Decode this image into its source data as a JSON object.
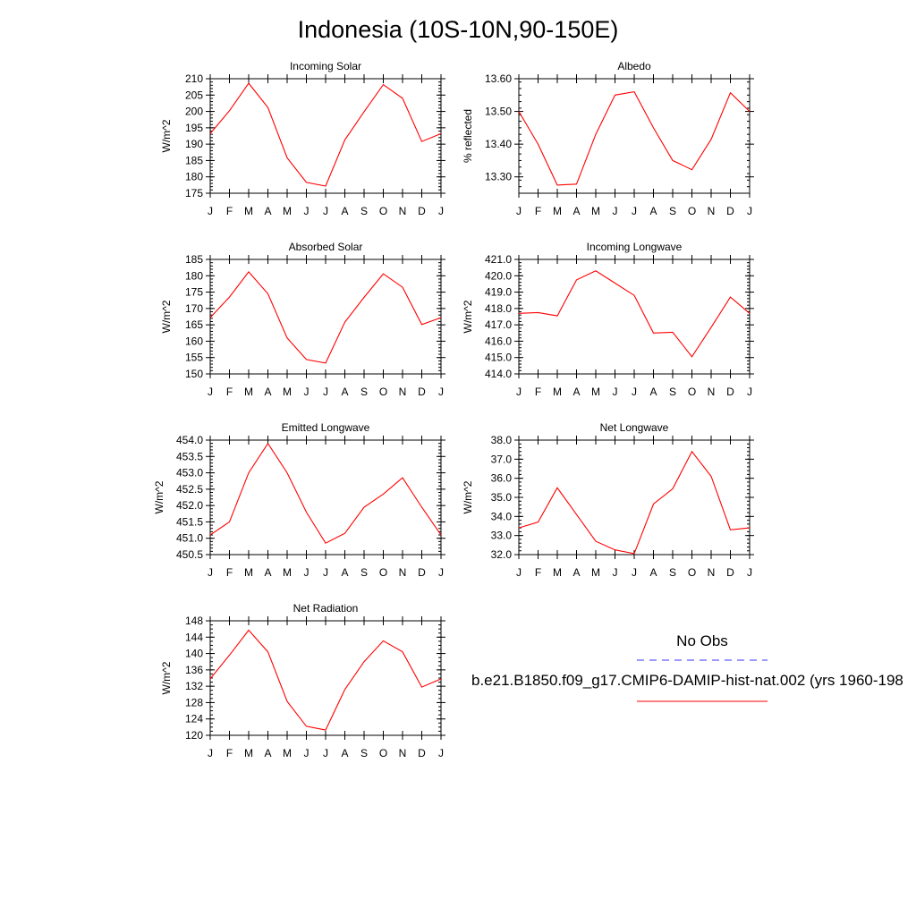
{
  "title": "Indonesia (10S-10N,90-150E)",
  "colors": {
    "model": "#ff0000",
    "obs": "#3333ff",
    "axes": "#000000"
  },
  "legend": {
    "obs_label": "No Obs",
    "model_label": "b.e21.B1850.f09_g17.CMIP6-DAMIP-hist-nat.002 (yrs 1960-198"
  },
  "chart_data": [
    {
      "type": "line",
      "title": "Incoming Solar",
      "xlabel": "",
      "ylabel": "W/m^2",
      "categories": [
        "J",
        "F",
        "M",
        "A",
        "M",
        "J",
        "J",
        "A",
        "S",
        "O",
        "N",
        "D",
        "J"
      ],
      "series": [
        {
          "values": [
            193.2,
            200.2,
            208.6,
            201.2,
            185.8,
            178.3,
            177.2,
            191.3,
            199.9,
            208.2,
            204.0,
            190.8,
            193.2
          ]
        }
      ],
      "ylim": [
        175,
        210
      ],
      "yticks": [
        "175",
        "180",
        "185",
        "190",
        "195",
        "200",
        "205",
        "210"
      ],
      "yminor": 1
    },
    {
      "type": "line",
      "title": "Albedo",
      "xlabel": "",
      "ylabel": "% reflected",
      "categories": [
        "J",
        "F",
        "M",
        "A",
        "M",
        "J",
        "J",
        "A",
        "S",
        "O",
        "N",
        "D",
        "J"
      ],
      "series": [
        {
          "values": [
            13.5,
            13.4,
            13.275,
            13.278,
            13.43,
            13.55,
            13.56,
            13.45,
            13.35,
            13.322,
            13.415,
            13.557,
            13.5
          ]
        }
      ],
      "ylim": [
        13.25,
        13.6
      ],
      "yticks": [
        "13.30",
        "13.40",
        "13.50",
        "13.60"
      ],
      "yminor": 0.02
    },
    {
      "type": "line",
      "title": "Absorbed Solar",
      "xlabel": "",
      "ylabel": "W/m^2",
      "categories": [
        "J",
        "F",
        "M",
        "A",
        "M",
        "J",
        "J",
        "A",
        "S",
        "O",
        "N",
        "D",
        "J"
      ],
      "series": [
        {
          "values": [
            167.2,
            173.5,
            181.2,
            174.5,
            161.0,
            154.4,
            153.3,
            165.8,
            173.4,
            180.6,
            176.5,
            165.1,
            167.2
          ]
        }
      ],
      "ylim": [
        150,
        185
      ],
      "yticks": [
        "150",
        "155",
        "160",
        "165",
        "170",
        "175",
        "180",
        "185"
      ],
      "yminor": 1
    },
    {
      "type": "line",
      "title": "Incoming Longwave",
      "xlabel": "",
      "ylabel": "W/m^2",
      "categories": [
        "J",
        "F",
        "M",
        "A",
        "M",
        "J",
        "J",
        "A",
        "S",
        "O",
        "N",
        "D",
        "J"
      ],
      "series": [
        {
          "values": [
            417.7,
            417.75,
            417.55,
            419.75,
            420.3,
            419.55,
            418.8,
            416.5,
            416.55,
            415.05,
            416.85,
            418.7,
            417.7
          ]
        }
      ],
      "ylim": [
        414.0,
        421.0
      ],
      "yticks": [
        "414.0",
        "415.0",
        "416.0",
        "417.0",
        "418.0",
        "419.0",
        "420.0",
        "421.0"
      ],
      "yminor": 0.2
    },
    {
      "type": "line",
      "title": "Emitted Longwave",
      "xlabel": "",
      "ylabel": "W/m^2",
      "categories": [
        "J",
        "F",
        "M",
        "A",
        "M",
        "J",
        "J",
        "A",
        "S",
        "O",
        "N",
        "D",
        "J"
      ],
      "series": [
        {
          "values": [
            451.1,
            451.5,
            453.0,
            453.9,
            453.0,
            451.8,
            450.85,
            451.15,
            451.95,
            452.35,
            452.85,
            451.95,
            451.1
          ]
        }
      ],
      "ylim": [
        450.5,
        454.0
      ],
      "yticks": [
        "450.5",
        "451.0",
        "451.5",
        "452.0",
        "452.5",
        "453.0",
        "453.5",
        "454.0"
      ],
      "yminor": 0.1
    },
    {
      "type": "line",
      "title": "Net Longwave",
      "xlabel": "",
      "ylabel": "W/m^2",
      "categories": [
        "J",
        "F",
        "M",
        "A",
        "M",
        "J",
        "J",
        "A",
        "S",
        "O",
        "N",
        "D",
        "J"
      ],
      "series": [
        {
          "values": [
            33.4,
            33.7,
            35.5,
            34.1,
            32.7,
            32.25,
            32.05,
            34.65,
            35.45,
            37.4,
            36.1,
            33.3,
            33.4
          ]
        }
      ],
      "ylim": [
        32.0,
        38.0
      ],
      "yticks": [
        "32.0",
        "33.0",
        "34.0",
        "35.0",
        "36.0",
        "37.0",
        "38.0"
      ],
      "yminor": 0.2
    },
    {
      "type": "line",
      "title": "Net Radiation",
      "xlabel": "",
      "ylabel": "W/m^2",
      "categories": [
        "J",
        "F",
        "M",
        "A",
        "M",
        "J",
        "J",
        "A",
        "S",
        "O",
        "N",
        "D",
        "J"
      ],
      "series": [
        {
          "values": [
            133.8,
            139.6,
            145.7,
            140.4,
            128.3,
            122.2,
            121.3,
            131.2,
            138.0,
            143.1,
            140.4,
            131.8,
            133.8
          ]
        }
      ],
      "ylim": [
        120,
        148
      ],
      "yticks": [
        "120",
        "124",
        "128",
        "132",
        "136",
        "140",
        "144",
        "148"
      ],
      "yminor": 1
    }
  ]
}
